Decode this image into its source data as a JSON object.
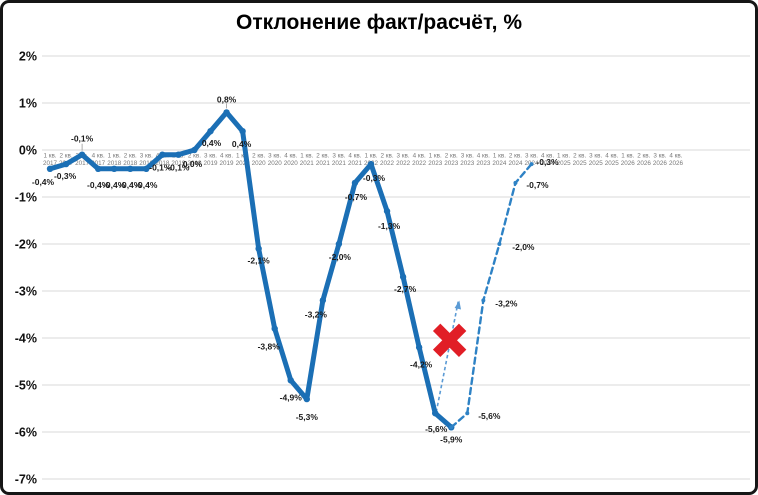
{
  "chart_data": {
    "type": "line",
    "title": "Отклонение факт/расчёт, %",
    "xlabel": "",
    "ylabel": "",
    "ylim": [
      -7,
      2
    ],
    "grid": true,
    "legend": "none",
    "y_ticks": [
      2,
      1,
      0,
      -1,
      -2,
      -3,
      -4,
      -5,
      -6,
      -7
    ],
    "y_tick_labels": [
      "2%",
      "1%",
      "0%",
      "-1%",
      "-2%",
      "-3%",
      "-4%",
      "-5%",
      "-6%",
      "-7%"
    ],
    "categories": [
      "1 кв. 2017",
      "2 кв. 2017",
      "3 кв. 2017",
      "4 кв. 2017",
      "1 кв. 2018",
      "2 кв. 2018",
      "3 кв. 2018",
      "4 кв. 2018",
      "1 кв. 2019",
      "2 кв. 2019",
      "3 кв. 2019",
      "4 кв. 2019",
      "1 кв. 2020",
      "2 кв. 2020",
      "3 кв. 2020",
      "4 кв. 2020",
      "1 кв. 2021",
      "2 кв. 2021",
      "3 кв. 2021",
      "4 кв. 2021",
      "1 кв. 2022",
      "2 кв. 2022",
      "3 кв. 2022",
      "4 кв. 2022",
      "1 кв. 2023",
      "2 кв. 2023",
      "3 кв. 2023",
      "4 кв. 2023",
      "1 кв. 2024",
      "2 кв. 2024",
      "3 кв. 2024",
      "4 кв. 2024",
      "1 кв. 2025",
      "2 кв. 2025",
      "3 кв. 2025",
      "4 кв. 2025",
      "1 кв. 2026",
      "2 кв. 2026",
      "3 кв. 2026",
      "4 кв. 2026"
    ],
    "series": [
      {
        "name": "actual",
        "style": "solid",
        "color": "#1b6fb5",
        "start_index": 0,
        "values": [
          -0.4,
          -0.3,
          -0.1,
          -0.4,
          -0.4,
          -0.4,
          -0.4,
          -0.1,
          -0.1,
          0.0,
          0.4,
          0.8,
          0.4,
          -2.1,
          -3.8,
          -4.9,
          -5.3,
          -3.2,
          -2.0,
          -0.7,
          -0.3,
          -1.3,
          -2.7,
          -4.2,
          -5.6,
          -5.9
        ],
        "labels": [
          "-0,4%",
          "-0,3%",
          "-0,1%",
          "-0,4%",
          "-0,4%",
          "-0,4%",
          "-0,4%",
          "-0,1%",
          "-0,1%",
          "0,0%",
          "0,4%",
          "0,8%",
          "0,4%",
          "-2,1%",
          "-3,8%",
          "-4,9%",
          "-5,3%",
          "-3,2%",
          "-2,0%",
          "-0,7%",
          "-0,3%",
          "-1,3%",
          "-2,7%",
          "-4,2%",
          "-5,6%",
          "-5,9%"
        ]
      },
      {
        "name": "forecast",
        "style": "dashed",
        "color": "#2e82c5",
        "start_index": 25,
        "values": [
          -5.9,
          -5.6,
          -3.2,
          -2.0,
          -0.7,
          -0.3
        ],
        "labels": [
          "",
          "-5,6%",
          "-3,2%",
          "-2,0%",
          "-0,7%",
          "-0,3%"
        ]
      }
    ],
    "annotations": {
      "rejected_arrow": {
        "description": "dashed arrow from -5,6% point rising steeply, marked as rejected",
        "color": "#5b9bd5",
        "from": {
          "index": 24,
          "value": -5.6
        },
        "to": {
          "index": 25.5,
          "value": -3.1
        }
      },
      "red_x_marker": {
        "description": "red cross over rejected arrow",
        "color": "#e11e26",
        "index": 24.9,
        "value": -4.05
      }
    },
    "colors": {
      "gridline": "#d9d9d9",
      "axis_text": "#787878",
      "label_text": "#1a1a1a"
    }
  }
}
